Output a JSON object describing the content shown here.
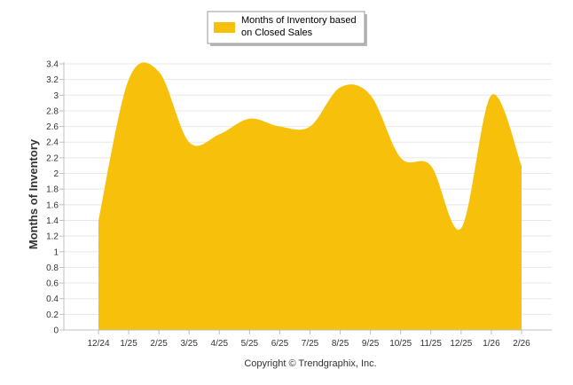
{
  "chart_data": {
    "type": "area",
    "categories": [
      "12/24",
      "1/25",
      "2/25",
      "3/25",
      "4/25",
      "5/25",
      "6/25",
      "7/25",
      "8/25",
      "9/25",
      "10/25",
      "11/25",
      "12/25",
      "1/26",
      "2/26"
    ],
    "series": [
      {
        "name": "Months of Inventory based on Closed Sales",
        "values": [
          1.4,
          3.2,
          3.3,
          2.4,
          2.5,
          2.7,
          2.6,
          2.6,
          3.1,
          3.0,
          2.2,
          2.1,
          1.3,
          3.0,
          2.1
        ]
      }
    ],
    "xlabel": "",
    "ylabel": "Months of Inventory",
    "ylim": [
      0,
      3.4
    ],
    "yticks": [
      "0",
      "0.2",
      "0.4",
      "0.6",
      "0.8",
      "1",
      "1.2",
      "1.4",
      "1.6",
      "1.8",
      "2",
      "2.2",
      "2.4",
      "2.6",
      "2.8",
      "3",
      "3.2",
      "3.4"
    ],
    "grid": true,
    "legend_position": "top-center",
    "colors": {
      "fill": "#F7C10B",
      "grid": "#e8e8e8",
      "axis": "#c0c0c0"
    }
  },
  "legend": {
    "line1": "Months of Inventory based",
    "line2": "on Closed Sales"
  },
  "footer": {
    "copyright": "Copyright © Trendgraphix, Inc."
  }
}
